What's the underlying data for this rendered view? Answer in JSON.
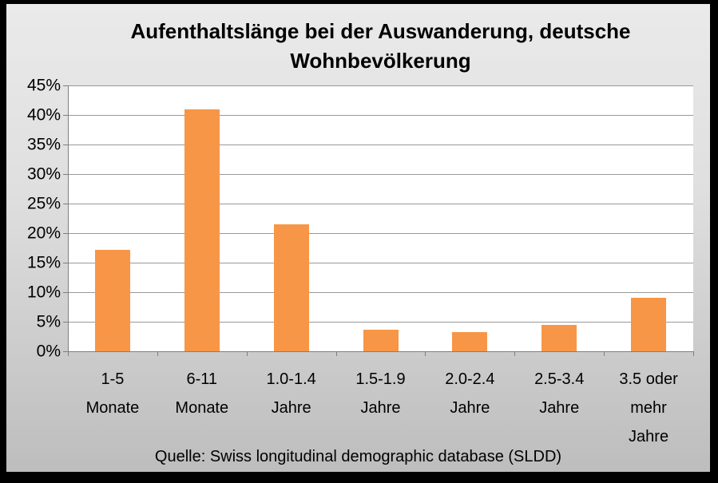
{
  "chart_data": {
    "type": "bar",
    "title": "Aufenthaltslänge bei der Auswanderung, deutsche Wohnbevölkerung",
    "title_lines": [
      "Aufenthaltslänge bei der Auswanderung, deutsche",
      "Wohnbevölkerung"
    ],
    "categories": [
      "1-5 Monate",
      "6-11 Monate",
      "1.0-1.4 Jahre",
      "1.5-1.9 Jahre",
      "2.0-2.4 Jahre",
      "2.5-3.4 Jahre",
      "3.5 oder mehr Jahre"
    ],
    "categories_display": [
      "1-5\nMonate",
      "6-11\nMonate",
      "1.0-1.4\nJahre",
      "1.5-1.9\nJahre",
      "2.0-2.4\nJahre",
      "2.5-3.4\nJahre",
      "3.5 oder\nmehr\nJahre"
    ],
    "values": [
      17.1,
      41.0,
      21.5,
      3.7,
      3.3,
      4.4,
      9.0
    ],
    "unit": "%",
    "xlabel": "",
    "ylabel": "",
    "ylim": [
      0,
      45
    ],
    "yticks": [
      0,
      5,
      10,
      15,
      20,
      25,
      30,
      35,
      40,
      45
    ],
    "ytick_labels": [
      "0%",
      "5%",
      "10%",
      "15%",
      "20%",
      "25%",
      "30%",
      "35%",
      "40%",
      "45%"
    ],
    "grid": true,
    "legend": false,
    "source": "Quelle: Swiss longitudinal demographic database (SLDD)",
    "colors": {
      "bar": "#F79646",
      "plot_background": "#FFFFFF",
      "gridline": "#999999",
      "axis": "#7F7F7F",
      "frame_border": "#000000",
      "background_top": "#EAEAEA",
      "background_bottom": "#BDBDBD",
      "text": "#000000"
    }
  }
}
